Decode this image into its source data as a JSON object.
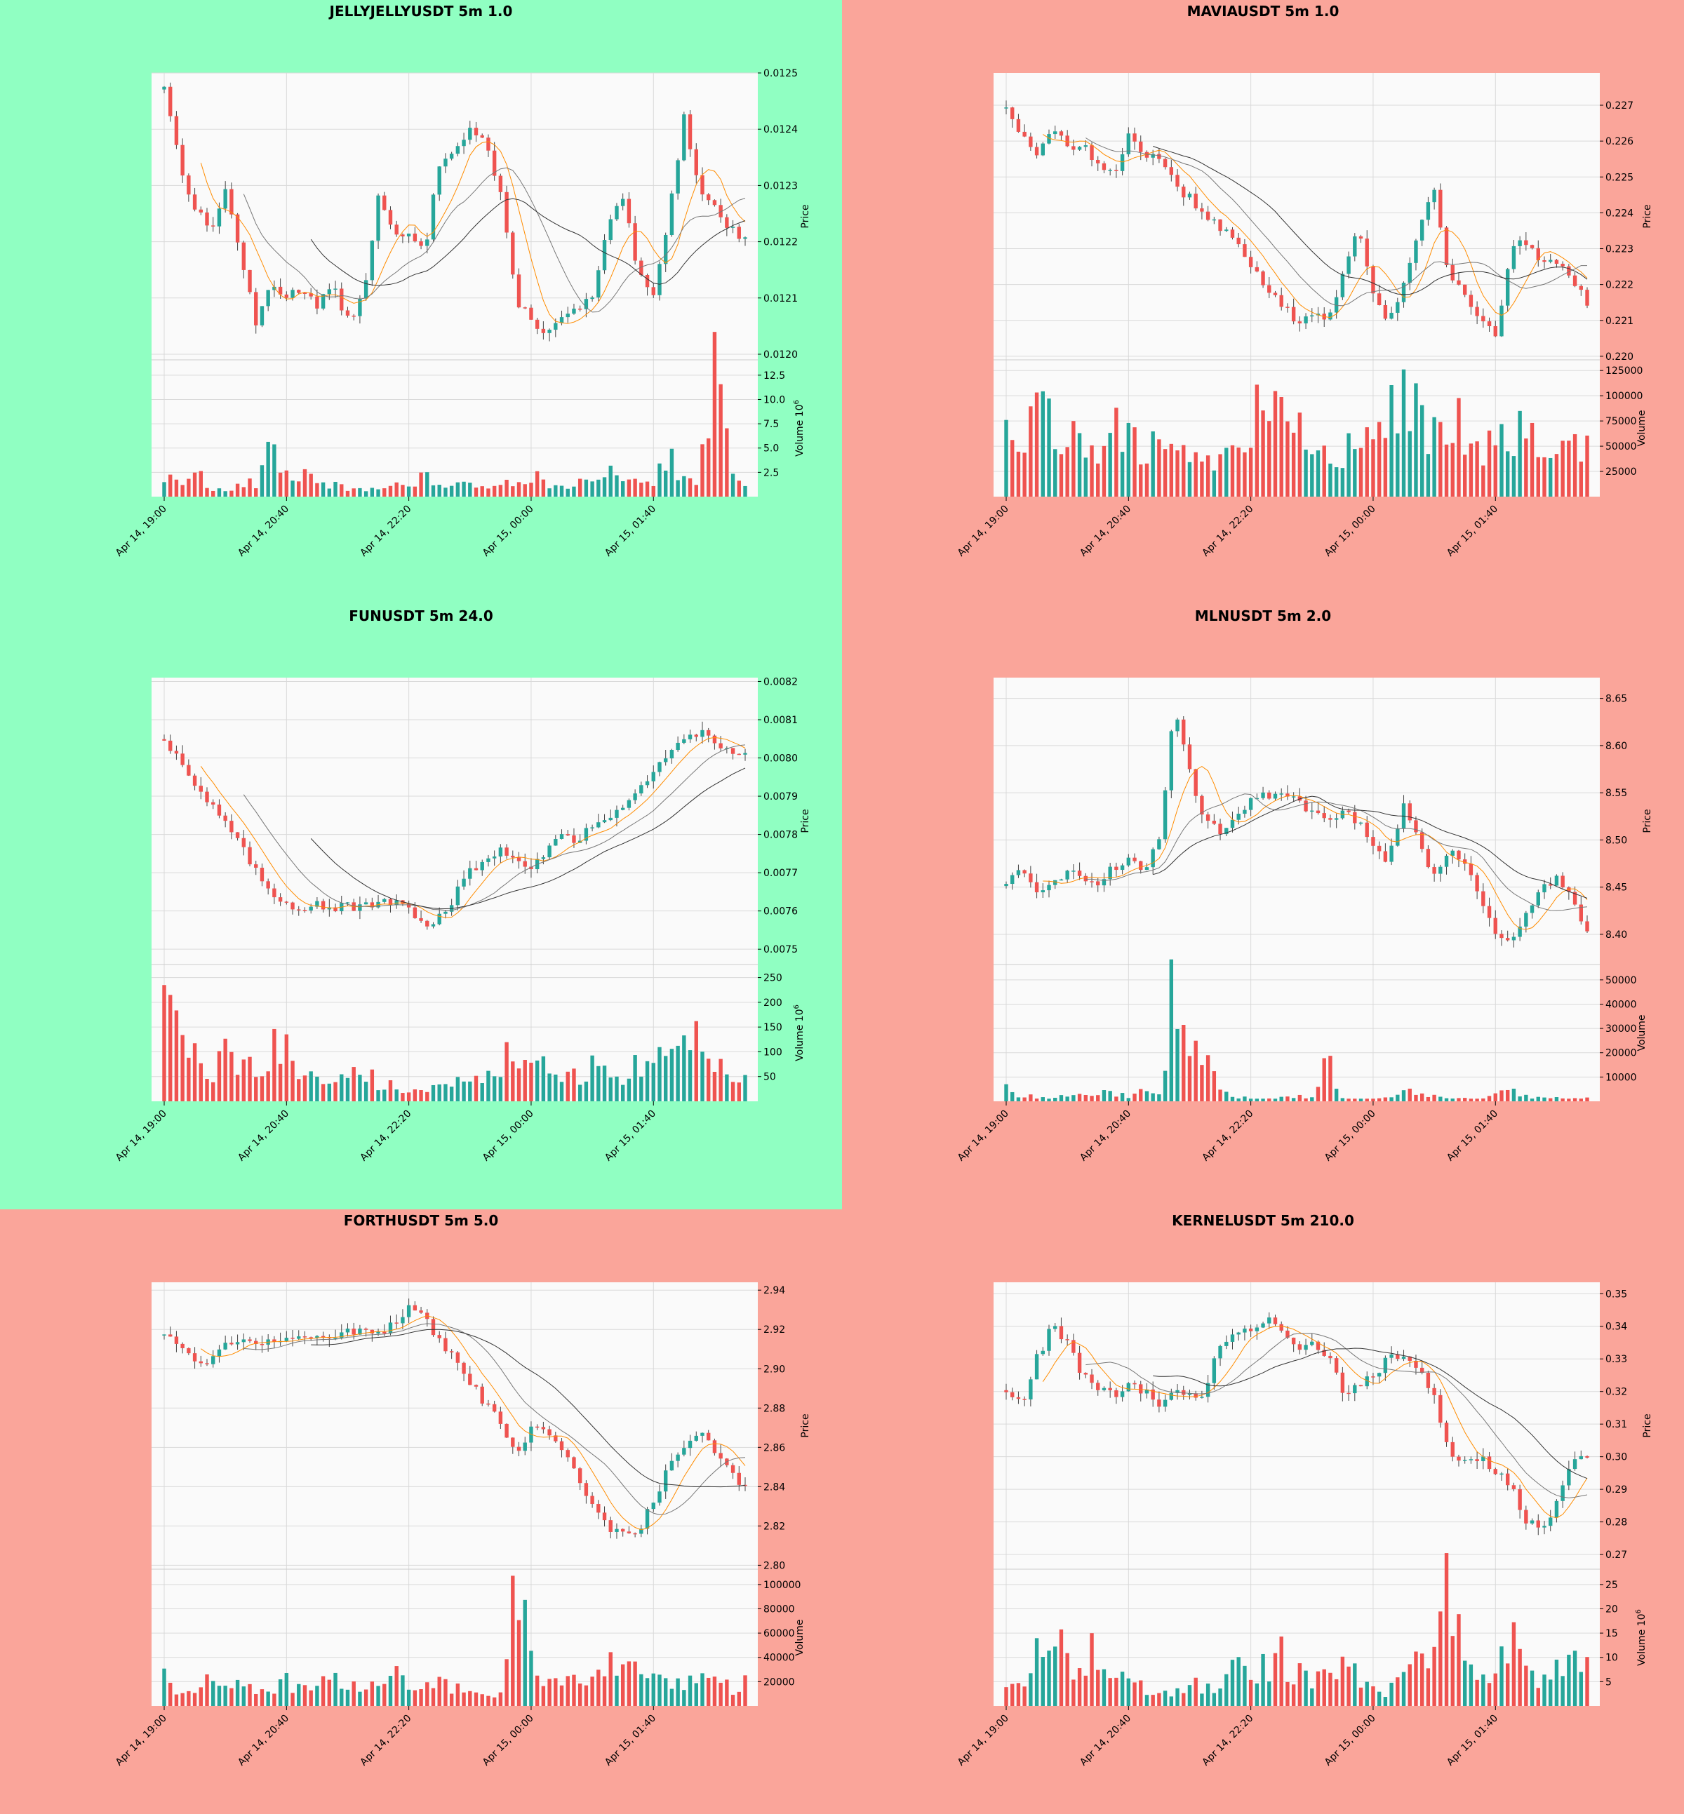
{
  "colors": {
    "up": "#26a69a",
    "down": "#ef5350",
    "plot_bg": "#fafafa",
    "grid": "#d9d9d9",
    "ma_fast": "#ff8c00",
    "ma_mid": "#777777",
    "ma_slow": "#333333"
  },
  "x_tick_labels": [
    "Apr 14, 19:00",
    "Apr 14, 20:40",
    "Apr 14, 22:20",
    "Apr 15, 00:00",
    "Apr 15, 01:40"
  ],
  "chart_data": [
    {
      "type": "candlestick",
      "title": "JELLYJELLYUSDT 5m 1.0",
      "background": "#90ffc2",
      "ylabel": "Price",
      "vol_label": "Volume",
      "vol_exp": "6",
      "price_ticks": [
        "0.0120",
        "0.0121",
        "0.0122",
        "0.0123",
        "0.0124",
        "0.0125"
      ],
      "vol_ticks": [
        "2.5",
        "5.0",
        "7.5",
        "10.0",
        "12.5"
      ],
      "ylim": [
        0.01199,
        0.0125
      ],
      "vol_max": 13.5,
      "shape": [
        0.01248,
        0.01234,
        0.01226,
        0.01222,
        0.01229,
        0.01218,
        0.01205,
        0.01213,
        0.0121,
        0.01212,
        0.01209,
        0.01212,
        0.01206,
        0.0121,
        0.01228,
        0.01221,
        0.01221,
        0.01218,
        0.01234,
        0.01237,
        0.0124,
        0.01238,
        0.01228,
        0.0121,
        0.01206,
        0.01204,
        0.01206,
        0.01208,
        0.0121,
        0.01222,
        0.01228,
        0.01214,
        0.0121,
        0.01225,
        0.01242,
        0.0123,
        0.01226,
        0.01222,
        0.01221
      ],
      "vol_shape": [
        2,
        1.5,
        2.5,
        1,
        0.8,
        1,
        1.5,
        5.5,
        2,
        2.2,
        1.3,
        1.2,
        0.8,
        1,
        1,
        1.2,
        1,
        2,
        1.3,
        1.2,
        1,
        1.5,
        1.2,
        2,
        2.2,
        1.5,
        1,
        1.4,
        1.2,
        2.2,
        2.5,
        1,
        1.5,
        4.5,
        1.6,
        1.5,
        13.2,
        3.5,
        1.5
      ]
    },
    {
      "type": "candlestick",
      "title": "MAVIAUSDT 5m 1.0",
      "background": "#faa59a",
      "ylabel": "Price",
      "vol_label": "Volume",
      "vol_exp": "",
      "price_ticks": [
        "0.220",
        "0.221",
        "0.222",
        "0.223",
        "0.224",
        "0.225",
        "0.226",
        "0.227"
      ],
      "vol_ticks": [
        "25000",
        "50000",
        "75000",
        "100000",
        "125000"
      ],
      "ylim": [
        0.2199,
        0.2279
      ],
      "vol_max": 130000,
      "shape": [
        0.227,
        0.2262,
        0.2255,
        0.2264,
        0.2258,
        0.226,
        0.2253,
        0.225,
        0.2262,
        0.2257,
        0.2254,
        0.2248,
        0.2244,
        0.224,
        0.2236,
        0.2232,
        0.2224,
        0.222,
        0.2215,
        0.221,
        0.2212,
        0.221,
        0.2222,
        0.2236,
        0.2218,
        0.221,
        0.222,
        0.2237,
        0.2245,
        0.2222,
        0.2218,
        0.221,
        0.2205,
        0.223,
        0.2232,
        0.2225,
        0.2226,
        0.2222,
        0.2215
      ],
      "vol_shape": [
        60000,
        30000,
        90000,
        75000,
        50000,
        60000,
        55000,
        70000,
        65000,
        45000,
        55000,
        40000,
        45000,
        40000,
        35000,
        45000,
        50000,
        120000,
        95000,
        70000,
        45000,
        40000,
        35000,
        70000,
        45000,
        80000,
        120000,
        100000,
        60000,
        75000,
        70000,
        55000,
        60000,
        50000,
        80000,
        60000,
        45000,
        55000,
        45000
      ]
    },
    {
      "type": "candlestick",
      "title": "FUNUSDT 5m 24.0",
      "background": "#90ffc2",
      "ylabel": "Price",
      "vol_label": "Volume",
      "vol_exp": "6",
      "price_ticks": [
        "0.0075",
        "0.0076",
        "0.0077",
        "0.0078",
        "0.0079",
        "0.0080",
        "0.0081",
        "0.0082"
      ],
      "vol_ticks": [
        "50",
        "100",
        "150",
        "200",
        "250"
      ],
      "ylim": [
        0.00746,
        0.00821
      ],
      "vol_max": 265,
      "shape": [
        0.00805,
        0.008,
        0.00793,
        0.00788,
        0.00783,
        0.00777,
        0.0077,
        0.00765,
        0.00762,
        0.00761,
        0.00762,
        0.00761,
        0.00761,
        0.00761,
        0.00762,
        0.00762,
        0.0076,
        0.00757,
        0.00758,
        0.00764,
        0.0077,
        0.00774,
        0.00776,
        0.00774,
        0.00772,
        0.00776,
        0.0078,
        0.00778,
        0.00782,
        0.00785,
        0.00788,
        0.00792,
        0.00796,
        0.00801,
        0.00805,
        0.00807,
        0.00805,
        0.00802,
        0.008
      ],
      "vol_shape": [
        265,
        100,
        90,
        40,
        100,
        60,
        80,
        90,
        150,
        60,
        50,
        40,
        60,
        70,
        30,
        30,
        20,
        20,
        30,
        40,
        30,
        50,
        80,
        90,
        80,
        60,
        40,
        50,
        70,
        50,
        60,
        70,
        80,
        90,
        130,
        120,
        100,
        60,
        50
      ]
    },
    {
      "type": "candlestick",
      "title": "MLNUSDT 5m 2.0",
      "background": "#faa59a",
      "ylabel": "Price",
      "vol_label": "Volume",
      "vol_exp": "",
      "price_ticks": [
        "8.40",
        "8.45",
        "8.50",
        "8.55",
        "8.60",
        "8.65"
      ],
      "vol_ticks": [
        "10000",
        "20000",
        "30000",
        "40000",
        "50000"
      ],
      "ylim": [
        8.368,
        8.672
      ],
      "vol_max": 54000,
      "shape": [
        8.455,
        8.465,
        8.44,
        8.46,
        8.465,
        8.46,
        8.455,
        8.47,
        8.48,
        8.47,
        8.5,
        8.64,
        8.57,
        8.52,
        8.51,
        8.53,
        8.54,
        8.55,
        8.545,
        8.54,
        8.53,
        8.525,
        8.53,
        8.52,
        8.49,
        8.48,
        8.54,
        8.5,
        8.46,
        8.49,
        8.48,
        8.44,
        8.4,
        8.39,
        8.42,
        8.45,
        8.46,
        8.44,
        8.4
      ],
      "vol_shape": [
        5000,
        2000,
        2000,
        1500,
        3000,
        2000,
        4000,
        3000,
        2000,
        4000,
        3000,
        52000,
        23000,
        20000,
        4000,
        2000,
        1000,
        1000,
        1500,
        2000,
        2000,
        17000,
        1000,
        1000,
        1000,
        1500,
        5000,
        3000,
        2000,
        1000,
        1000,
        1000,
        3000,
        4000,
        2000,
        1500,
        1500,
        1000,
        2000
      ]
    },
    {
      "type": "candlestick",
      "title": "FORTHUSDT 5m 5.0",
      "background": "#faa59a",
      "ylabel": "Price",
      "vol_label": "Volume",
      "vol_exp": "",
      "price_ticks": [
        "2.80",
        "2.82",
        "2.84",
        "2.86",
        "2.88",
        "2.90",
        "2.92",
        "2.94"
      ],
      "vol_ticks": [
        "20000",
        "40000",
        "60000",
        "80000",
        "100000"
      ],
      "ylim": [
        2.798,
        2.944
      ],
      "vol_max": 108000,
      "shape": [
        2.918,
        2.912,
        2.904,
        2.905,
        2.912,
        2.915,
        2.913,
        2.916,
        2.915,
        2.919,
        2.917,
        2.917,
        2.918,
        2.92,
        2.918,
        2.923,
        2.93,
        2.925,
        2.914,
        2.904,
        2.893,
        2.882,
        2.872,
        2.855,
        2.87,
        2.866,
        2.86,
        2.845,
        2.832,
        2.82,
        2.815,
        2.818,
        2.832,
        2.85,
        2.862,
        2.87,
        2.858,
        2.848,
        2.84
      ],
      "vol_shape": [
        30000,
        8000,
        15000,
        25000,
        18000,
        20000,
        15000,
        10000,
        20000,
        12000,
        18000,
        22000,
        16000,
        18000,
        22000,
        26000,
        18000,
        15000,
        18000,
        15000,
        10000,
        12000,
        10000,
        105000,
        35000,
        15000,
        20000,
        25000,
        18000,
        35000,
        25000,
        28000,
        22000,
        15000,
        18000,
        20000,
        30000,
        15000,
        18000
      ]
    },
    {
      "type": "candlestick",
      "title": "KERNELUSDT 5m 210.0",
      "background": "#faa59a",
      "ylabel": "Price",
      "vol_label": "Volume",
      "vol_exp": "6",
      "price_ticks": [
        "0.27",
        "0.28",
        "0.29",
        "0.30",
        "0.31",
        "0.32",
        "0.33",
        "0.34",
        "0.35"
      ],
      "vol_ticks": [
        "5",
        "10",
        "15",
        "20",
        "25"
      ],
      "ylim": [
        0.2655,
        0.3535
      ],
      "vol_max": 27,
      "shape": [
        0.32,
        0.316,
        0.33,
        0.34,
        0.335,
        0.325,
        0.32,
        0.319,
        0.322,
        0.32,
        0.316,
        0.32,
        0.318,
        0.32,
        0.335,
        0.338,
        0.34,
        0.342,
        0.338,
        0.332,
        0.334,
        0.332,
        0.32,
        0.322,
        0.325,
        0.33,
        0.332,
        0.328,
        0.318,
        0.3,
        0.298,
        0.3,
        0.295,
        0.292,
        0.28,
        0.278,
        0.285,
        0.298,
        0.3
      ],
      "vol_shape": [
        6,
        5,
        16,
        14,
        9,
        10,
        11,
        6,
        5,
        4,
        3,
        3,
        5,
        4,
        3,
        9,
        8,
        9,
        10,
        7,
        5,
        6,
        11,
        5,
        4,
        3,
        9,
        8,
        9,
        26,
        7,
        6,
        5,
        15,
        8,
        4,
        7,
        12,
        9
      ]
    }
  ]
}
